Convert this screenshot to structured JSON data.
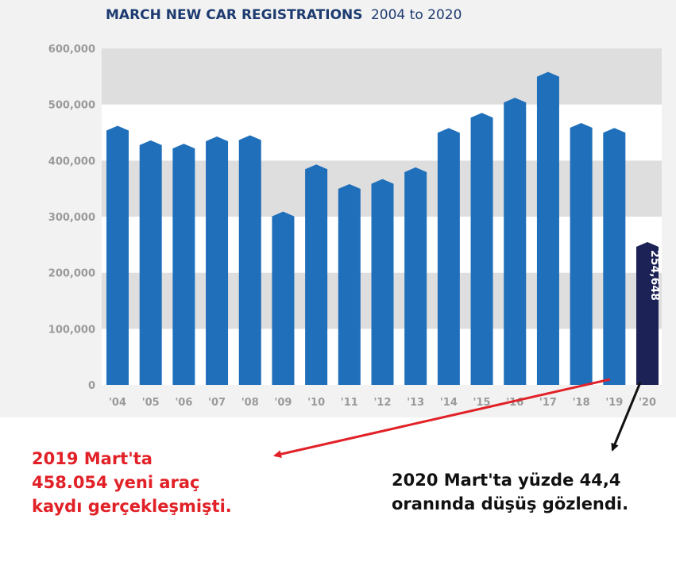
{
  "colors": {
    "bar": "#1f6fba",
    "bar_highlight": "#1c2256",
    "title": "#1d3b70",
    "tick": "#9a9a9a",
    "note_2019": "#e12127",
    "note_2020": "#111111",
    "arrow_2019": "#e12127",
    "arrow_2020": "#111111"
  },
  "chart_data": {
    "type": "bar",
    "title": "MARCH NEW CAR REGISTRATIONS",
    "subtitle": "2004 to 2020",
    "categories": [
      "'04",
      "'05",
      "'06",
      "'07",
      "'08",
      "'09",
      "'10",
      "'11",
      "'12",
      "'13",
      "'14",
      "'15",
      "'16",
      "'17",
      "'18",
      "'19",
      "'20"
    ],
    "values": [
      462000,
      436000,
      430000,
      443000,
      445000,
      309000,
      393000,
      358000,
      367000,
      388000,
      458000,
      485000,
      512000,
      558000,
      467000,
      458054,
      254648
    ],
    "highlight_index": 16,
    "data_labels": [
      {
        "index": 16,
        "text": "254,648"
      }
    ],
    "ylim": [
      0,
      600000
    ],
    "yticks": [
      0,
      100000,
      200000,
      300000,
      400000,
      500000,
      600000
    ],
    "ytick_labels": [
      "0",
      "100,000",
      "200,000",
      "300,000",
      "400,000",
      "500,000",
      "600,000"
    ],
    "grid": "alternating horizontal bands",
    "xlabel": "",
    "ylabel": ""
  },
  "annotations": {
    "note_2019": [
      "2019 Mart'ta",
      "458.054 yeni araç",
      "kaydı gerçekleşmişti."
    ],
    "note_2020": [
      "2020 Mart'ta yüzde 44,4",
      "oranında düşüş gözlendi."
    ]
  }
}
